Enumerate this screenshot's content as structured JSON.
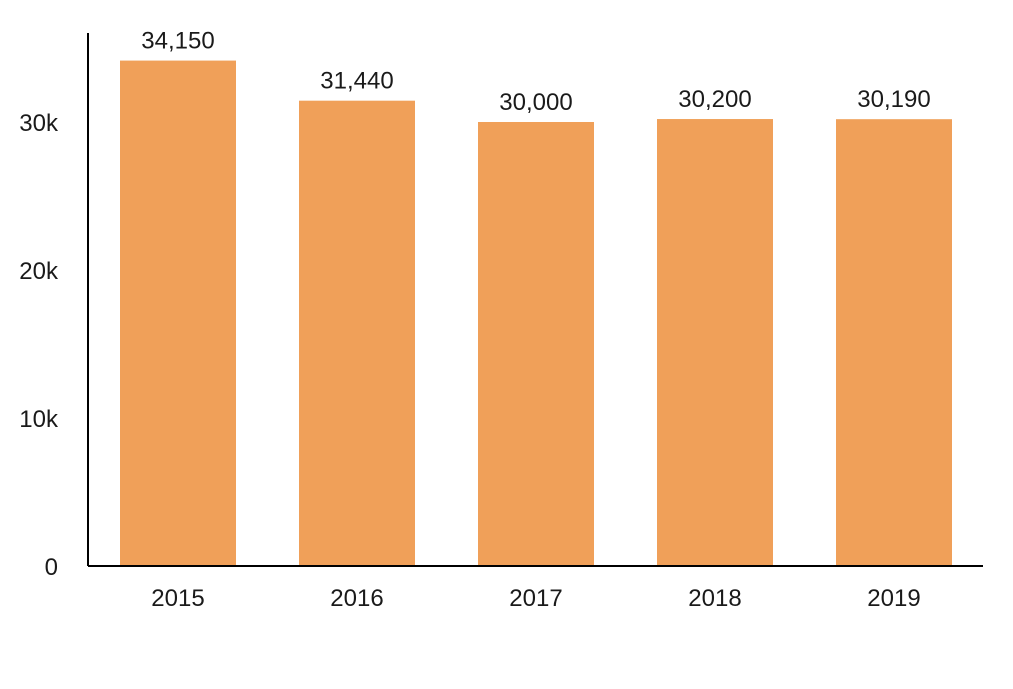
{
  "chart_data": {
    "type": "bar",
    "categories": [
      "2015",
      "2016",
      "2017",
      "2018",
      "2019"
    ],
    "values": [
      34150,
      31440,
      30000,
      30200,
      30190
    ],
    "data_labels": [
      "34,150",
      "31,440",
      "30,000",
      "30,200",
      "30,190"
    ],
    "title": "",
    "xlabel": "",
    "ylabel": "",
    "ylim": [
      0,
      36000
    ],
    "yticks": [
      0,
      10000,
      20000,
      30000
    ],
    "ytick_labels": [
      "0",
      "10k",
      "20k",
      "30k"
    ],
    "grid": false,
    "legend": "none",
    "bar_color": "#F0A059",
    "axis_color": "#000000"
  }
}
